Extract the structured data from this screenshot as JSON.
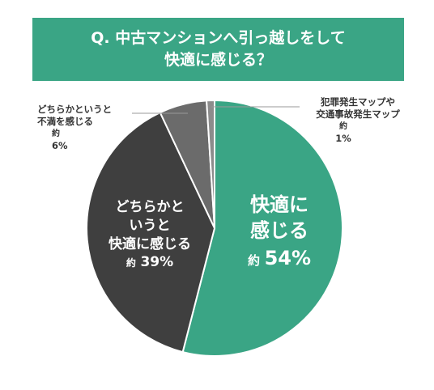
{
  "title": {
    "line1": "Q. 中古マンションへ引っ越しをして",
    "line2": "快適に感じる？"
  },
  "chart_data": {
    "type": "pie",
    "start_angle_deg": 0,
    "direction": "clockwise",
    "slices": [
      {
        "label_lines": [
          "快適に",
          "感じる"
        ],
        "prefix": "約",
        "value": 54,
        "display": "54%",
        "color": "#3aa585"
      },
      {
        "label_lines": [
          "どちらかと",
          "いうと",
          "快適に感じる"
        ],
        "prefix": "約",
        "value": 39,
        "display": "39%",
        "color": "#3f3f3f"
      },
      {
        "label_lines": [
          "どちらかというと",
          "不満を感じる"
        ],
        "prefix": "約",
        "value": 6,
        "display": "6%",
        "color": "#6b6b6b"
      },
      {
        "label_lines": [
          "犯罪発生マップや",
          "交通事故発生マップ"
        ],
        "prefix": "約",
        "value": 1,
        "display": "1%",
        "color": "#8c8c8c"
      }
    ]
  }
}
